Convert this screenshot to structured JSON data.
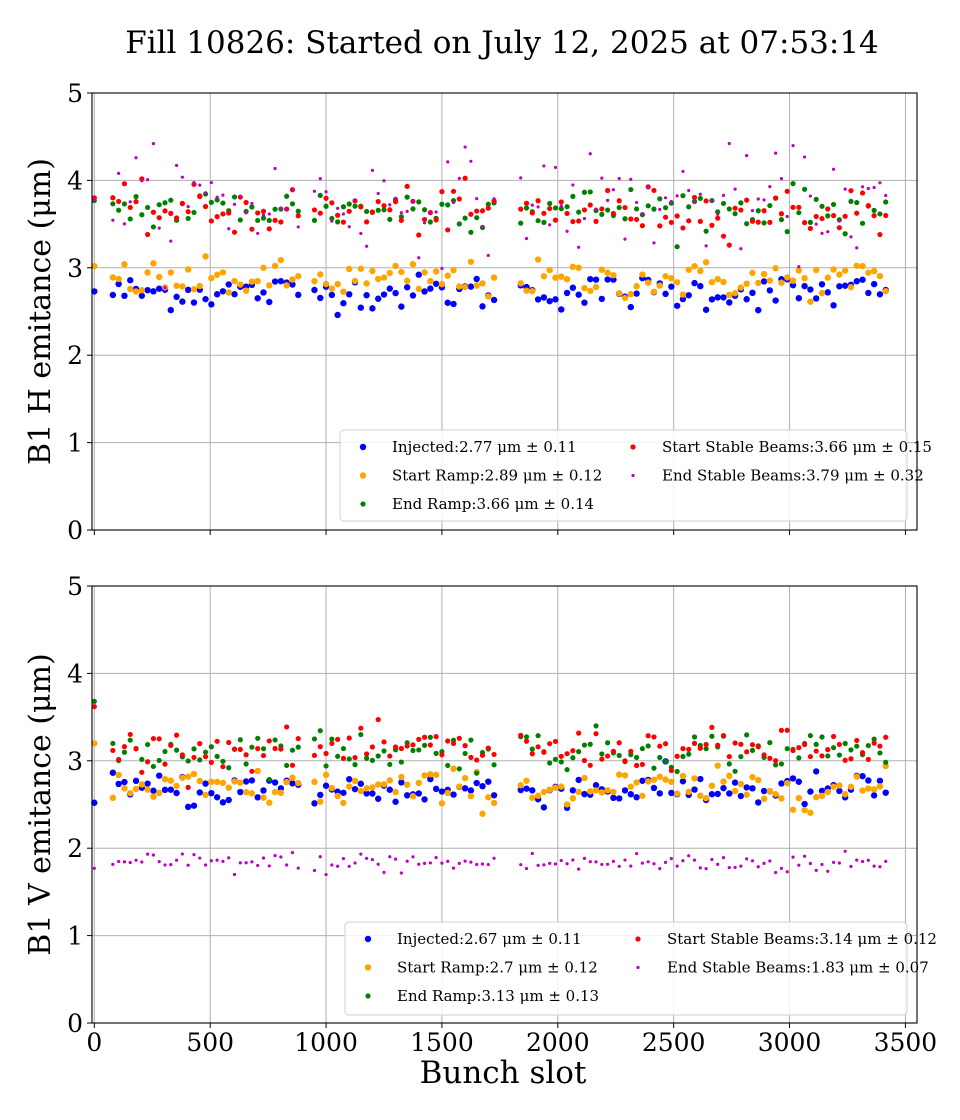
{
  "figure": {
    "title": "Fill 10826: Started on July 12, 2025 at 07:53:14",
    "xlabel": "Bunch slot"
  },
  "chart_data": [
    {
      "type": "scatter",
      "ylabel": "B1 H emitance (μm)",
      "xlim": [
        -10,
        3550
      ],
      "ylim": [
        0,
        5
      ],
      "xticks": [
        0,
        500,
        1000,
        1500,
        2000,
        2500,
        3000,
        3500
      ],
      "yticks": [
        0,
        1,
        2,
        3,
        4,
        5
      ],
      "grid": true,
      "legend_position": "lower-right",
      "series": [
        {
          "name": "Injected",
          "legend": "Injected:2.77 μm ± 0.11",
          "color": "#0000ff",
          "mean": 2.77,
          "std": 0.11,
          "base_mean": 2.72,
          "marker": "large"
        },
        {
          "name": "Start Ramp",
          "legend": "Start Ramp:2.89 μm ± 0.12",
          "color": "#ffa500",
          "mean": 2.89,
          "std": 0.12,
          "base_mean": 2.86,
          "marker": "large"
        },
        {
          "name": "End Ramp",
          "legend": "End Ramp:3.66 μm ± 0.14",
          "color": "#008000",
          "mean": 3.66,
          "std": 0.14,
          "base_mean": 3.68,
          "marker": "medium"
        },
        {
          "name": "Start Stable Beams",
          "legend": "Start Stable Beams:3.66 μm ± 0.15",
          "color": "#ff0000",
          "mean": 3.66,
          "std": 0.15,
          "base_mean": 3.65,
          "marker": "medium"
        },
        {
          "name": "End Stable Beams",
          "legend": "End Stable Beams:3.79 μm ± 0.32",
          "color": "#bf00bf",
          "mean": 3.79,
          "std": 0.32,
          "base_mean": 3.75,
          "marker": "small"
        }
      ]
    },
    {
      "type": "scatter",
      "ylabel": "B1 V emitance (μm)",
      "xlim": [
        -10,
        3550
      ],
      "ylim": [
        0,
        5
      ],
      "xticks": [
        0,
        500,
        1000,
        1500,
        2000,
        2500,
        3000,
        3500
      ],
      "yticks": [
        0,
        1,
        2,
        3,
        4,
        5
      ],
      "grid": true,
      "legend_position": "lower-right",
      "series": [
        {
          "name": "Injected",
          "legend": "Injected:2.67 μm ± 0.11",
          "color": "#0000ff",
          "mean": 2.67,
          "std": 0.11,
          "base_mean": 2.67,
          "marker": "large"
        },
        {
          "name": "Start Ramp",
          "legend": "Start Ramp:2.7 μm ± 0.12",
          "color": "#ffa500",
          "mean": 2.7,
          "std": 0.12,
          "base_mean": 2.68,
          "marker": "large"
        },
        {
          "name": "End Ramp",
          "legend": "End Ramp:3.13 μm ± 0.13",
          "color": "#008000",
          "mean": 3.13,
          "std": 0.13,
          "base_mean": 3.12,
          "marker": "medium"
        },
        {
          "name": "Start Stable Beams",
          "legend": "Start Stable Beams:3.14 μm ± 0.12",
          "color": "#ff0000",
          "mean": 3.14,
          "std": 0.12,
          "base_mean": 3.13,
          "marker": "medium"
        },
        {
          "name": "End Stable Beams",
          "legend": "End Stable Beams:1.83 μm ± 0.07",
          "color": "#bf00bf",
          "mean": 1.83,
          "std": 0.07,
          "base_mean": 1.83,
          "marker": "small"
        }
      ]
    }
  ],
  "bunch_trains": [
    {
      "start": 80,
      "end": 890,
      "step": 25
    },
    {
      "start": 950,
      "end": 1730,
      "step": 25
    },
    {
      "start": 1840,
      "end": 3430,
      "step": 25
    }
  ],
  "first_bunch": {
    "x": 0,
    "panel0": [
      2.73,
      3.02,
      3.77,
      3.8,
      3.78
    ],
    "panel1": [
      2.52,
      3.2,
      3.68,
      3.62,
      1.77
    ]
  }
}
